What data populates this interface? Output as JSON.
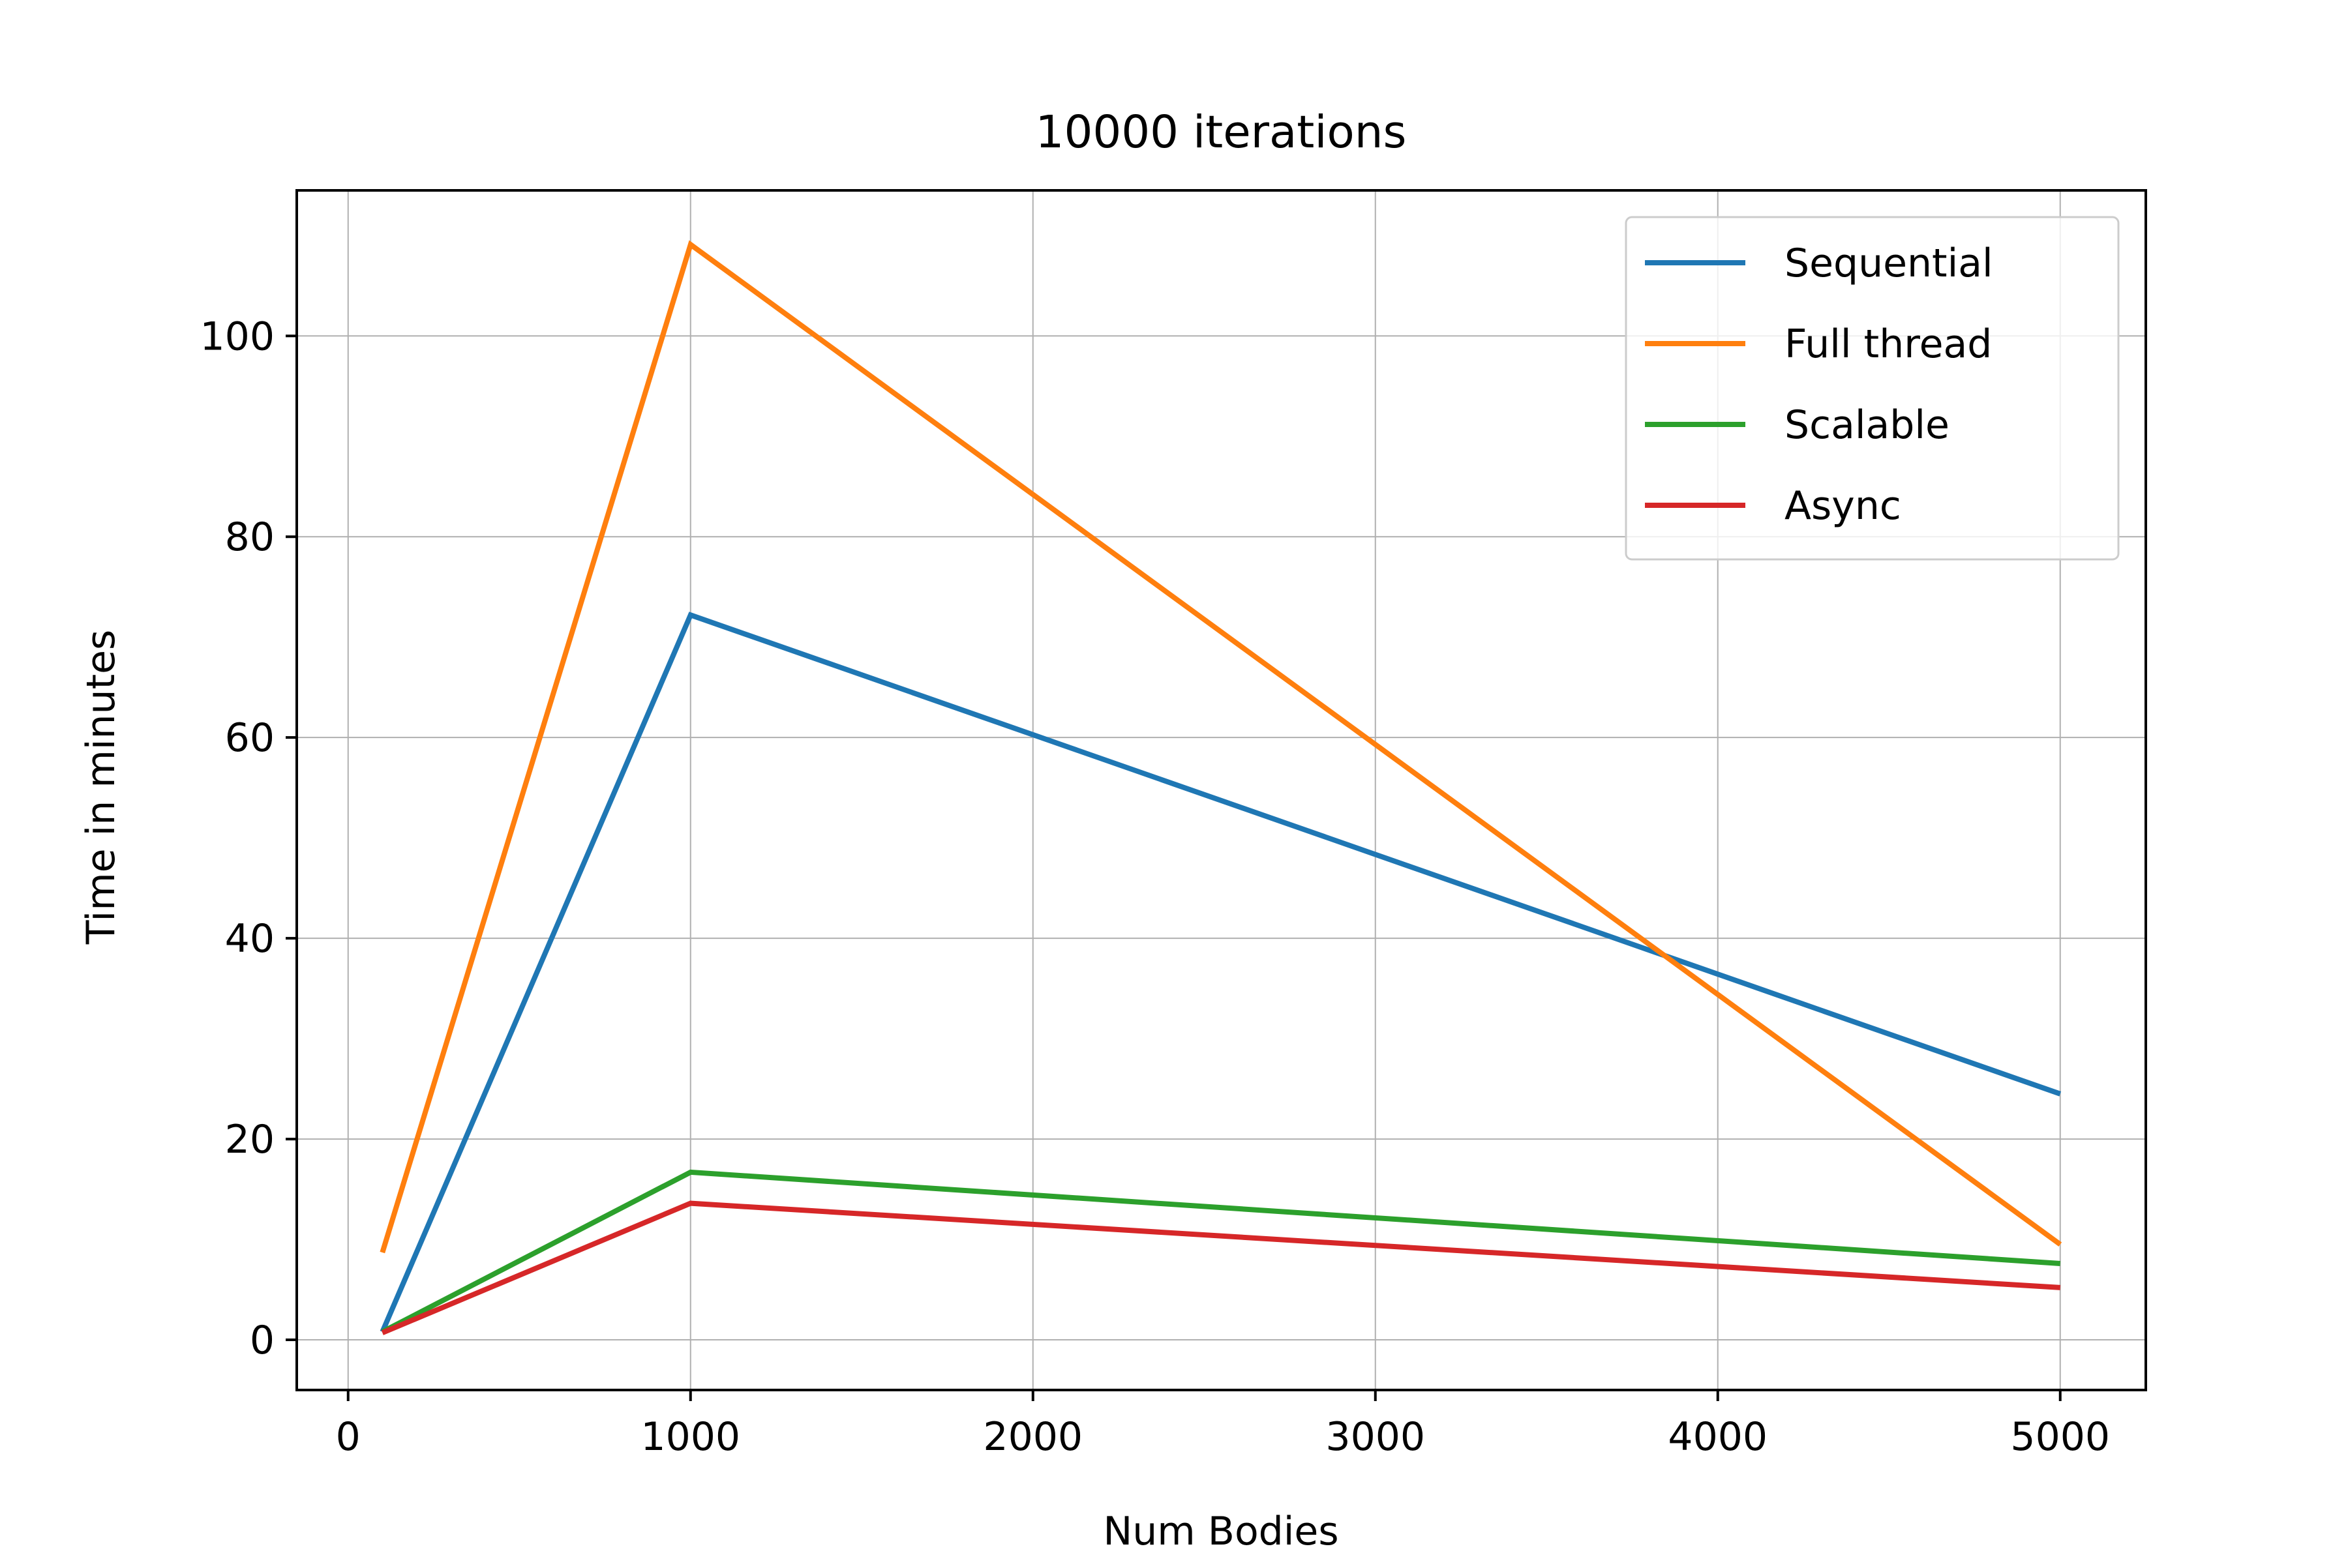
{
  "chart_data": {
    "type": "line",
    "title": "10000 iterations",
    "xlabel": "Num Bodies",
    "ylabel": "Time in minutes",
    "xlim": [
      -150,
      5250
    ],
    "ylim": [
      -5,
      114.5
    ],
    "xticks": [
      0,
      1000,
      2000,
      3000,
      4000,
      5000
    ],
    "yticks": [
      0,
      20,
      40,
      60,
      80,
      100
    ],
    "grid": true,
    "legend_position": "top-right",
    "series": [
      {
        "name": "Sequential",
        "color": "#1f77b4",
        "x": [
          100,
          1000,
          5000
        ],
        "y": [
          0.8,
          72.2,
          24.5
        ]
      },
      {
        "name": "Full thread",
        "color": "#ff7f0e",
        "x": [
          100,
          1000,
          5000
        ],
        "y": [
          8.7,
          109.1,
          9.5
        ]
      },
      {
        "name": "Scalable",
        "color": "#2ca02c",
        "x": [
          100,
          1000,
          5000
        ],
        "y": [
          0.8,
          16.7,
          7.6
        ]
      },
      {
        "name": "Async",
        "color": "#d62728",
        "x": [
          100,
          1000,
          5000
        ],
        "y": [
          0.7,
          13.6,
          5.2
        ]
      }
    ]
  }
}
